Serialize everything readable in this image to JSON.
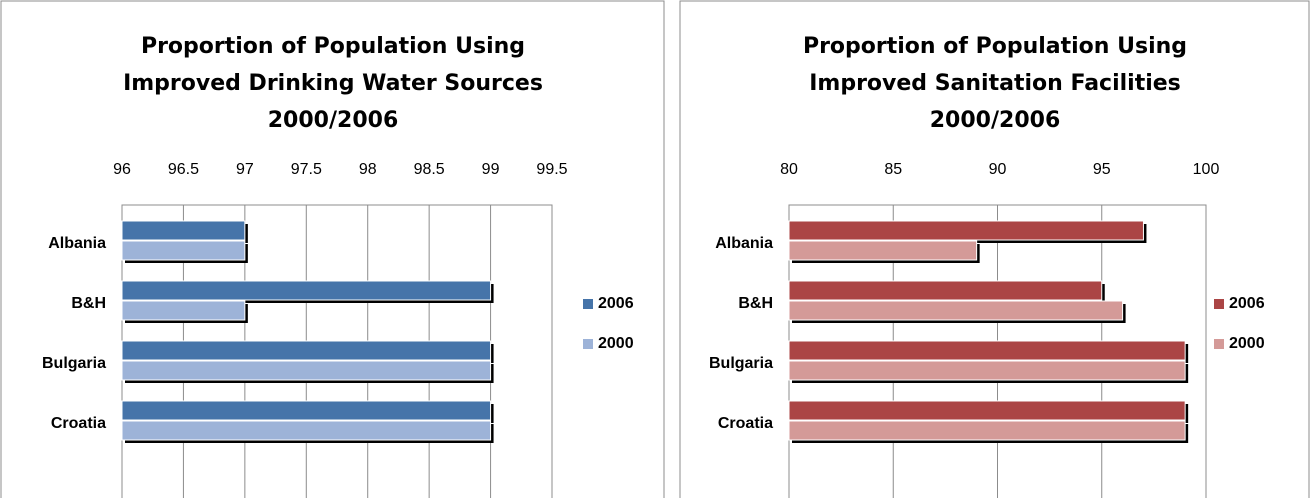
{
  "chart_data": [
    {
      "type": "bar",
      "title": "Proportion of Population Using Improved Drinking Water Sources 2000/2006",
      "categories": [
        "Albania",
        "B&H",
        "Bulgaria",
        "Croatia"
      ],
      "series": [
        {
          "name": "2006",
          "color": "#4674a9",
          "values": [
            97,
            99,
            99,
            99
          ]
        },
        {
          "name": "2000",
          "color": "#9db3d8",
          "values": [
            97,
            97,
            99,
            99
          ]
        }
      ],
      "xlim": [
        96,
        99.5
      ],
      "xticks": [
        96,
        96.5,
        97,
        97.5,
        98,
        98.5,
        99,
        99.5
      ],
      "grid": true,
      "legend": "right"
    },
    {
      "type": "bar",
      "title": "Proportion of Population Using Improved Sanitation Facilities 2000/2006",
      "categories": [
        "Albania",
        "B&H",
        "Bulgaria",
        "Croatia"
      ],
      "series": [
        {
          "name": "2006",
          "color": "#ab4545",
          "values": [
            97,
            95,
            99,
            99
          ]
        },
        {
          "name": "2000",
          "color": "#d49a98",
          "values": [
            89,
            96,
            99,
            99
          ]
        }
      ],
      "xlim": [
        80,
        100
      ],
      "xticks": [
        80,
        85,
        90,
        95,
        100
      ],
      "grid": true,
      "legend": "right"
    }
  ]
}
